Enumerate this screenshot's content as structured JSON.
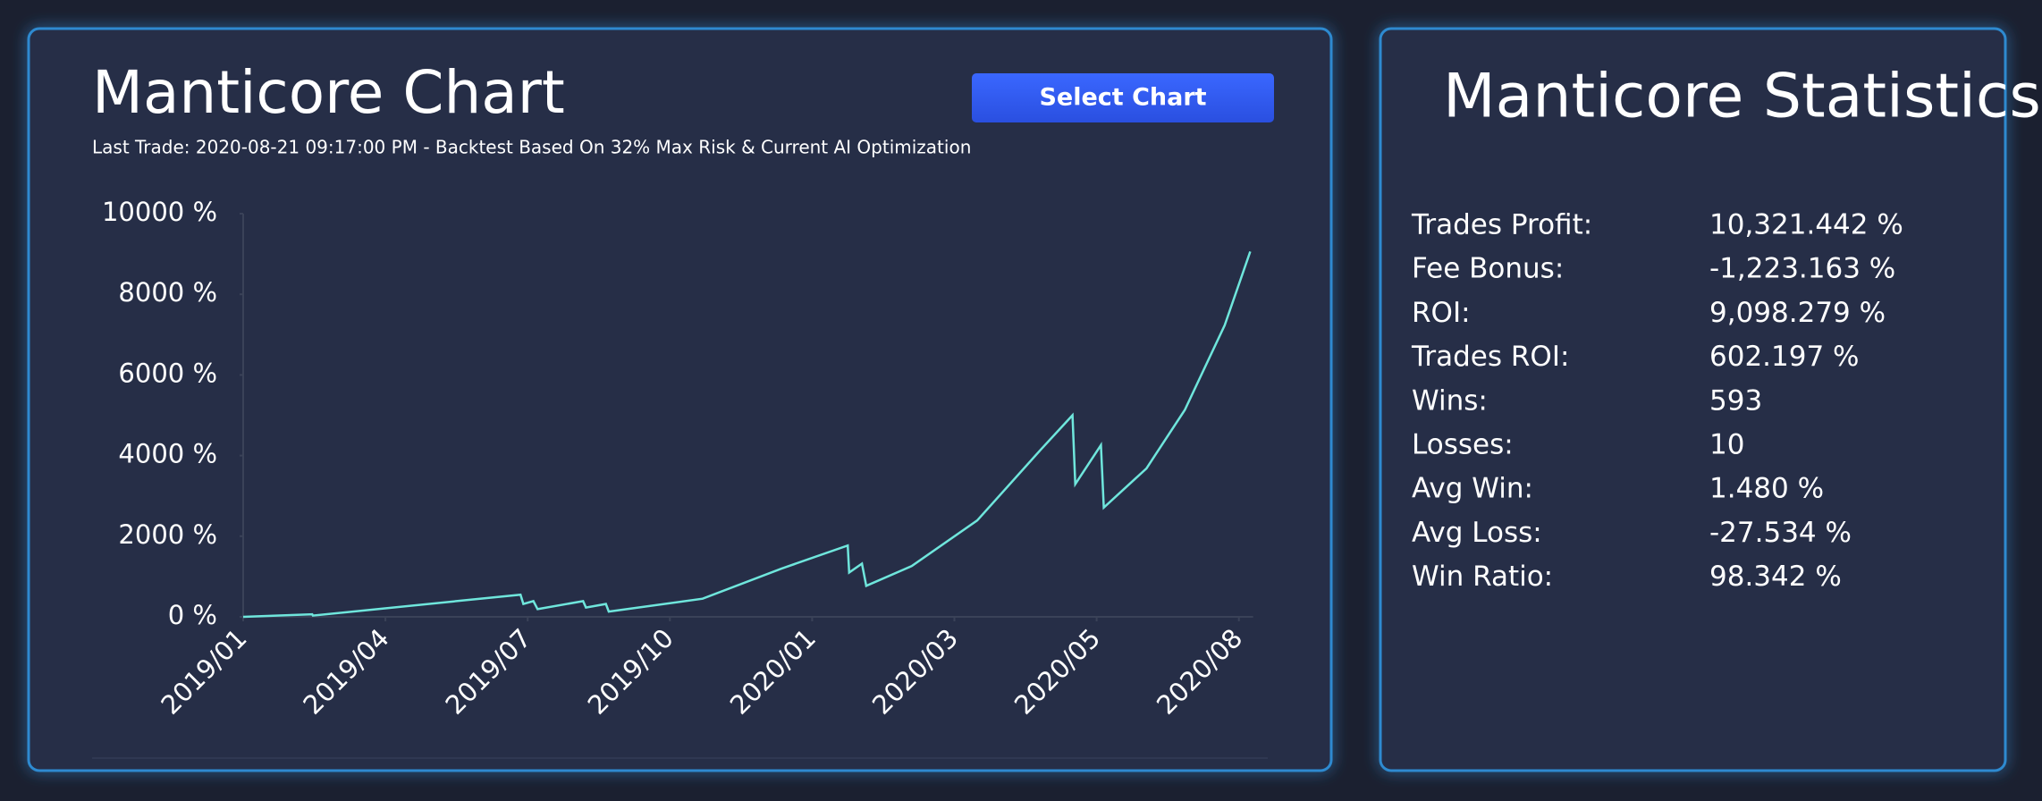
{
  "header": {
    "title": "Manticore Chart",
    "subtitle": "Last Trade: 2020-08-21 09:17:00 PM - Backtest Based On 32% Max Risk & Current AI Optimization",
    "button": "Select Chart"
  },
  "chart_data": {
    "type": "line",
    "color": "#6fe6dc",
    "x": [
      0,
      0.485,
      0.49,
      1.95,
      1.97,
      2.04,
      2.07,
      2.39,
      2.41,
      2.55,
      2.57,
      3.23,
      3.78,
      4.25,
      4.26,
      4.35,
      4.38,
      4.7,
      5.16,
      5.61,
      5.83,
      5.85,
      6.03,
      6.05,
      6.35,
      6.62,
      6.9,
      7.08
    ],
    "values": [
      0,
      65,
      30,
      550,
      320,
      390,
      190,
      390,
      230,
      320,
      130,
      450,
      1190,
      1770,
      1100,
      1320,
      770,
      1260,
      2390,
      4160,
      5000,
      3290,
      4260,
      2710,
      3680,
      5130,
      7230,
      9060
    ],
    "xlim": [
      0,
      7.1
    ],
    "xticks": [
      {
        "value": 0,
        "label": "2019/01"
      },
      {
        "value": 1,
        "label": "2019/04"
      },
      {
        "value": 2,
        "label": "2019/07"
      },
      {
        "value": 3,
        "label": "2019/10"
      },
      {
        "value": 4,
        "label": "2020/01"
      },
      {
        "value": 5,
        "label": "2020/03"
      },
      {
        "value": 6,
        "label": "2020/05"
      },
      {
        "value": 7,
        "label": "2020/08"
      }
    ],
    "ylim": [
      0,
      10000
    ],
    "yticks": [
      {
        "value": 0,
        "label": "0 %"
      },
      {
        "value": 2000,
        "label": "2000 %"
      },
      {
        "value": 4000,
        "label": "4000 %"
      },
      {
        "value": 6000,
        "label": "6000 %"
      },
      {
        "value": 8000,
        "label": "8000 %"
      },
      {
        "value": 10000,
        "label": "10000 %"
      }
    ]
  },
  "stats": {
    "title": "Manticore Statistics",
    "rows": [
      [
        "Trades Profit:",
        "10,321.442 %"
      ],
      [
        "Fee Bonus:",
        "-1,223.163 %"
      ],
      [
        "ROI:",
        "9,098.279 %"
      ],
      [
        "Trades ROI:",
        "602.197 %"
      ],
      [
        "Wins:",
        "593"
      ],
      [
        "Losses:",
        "10"
      ],
      [
        "Avg Win:",
        "1.480 %"
      ],
      [
        "Avg Loss:",
        "-27.534 %"
      ],
      [
        "Win Ratio:",
        "98.342 %"
      ]
    ]
  }
}
